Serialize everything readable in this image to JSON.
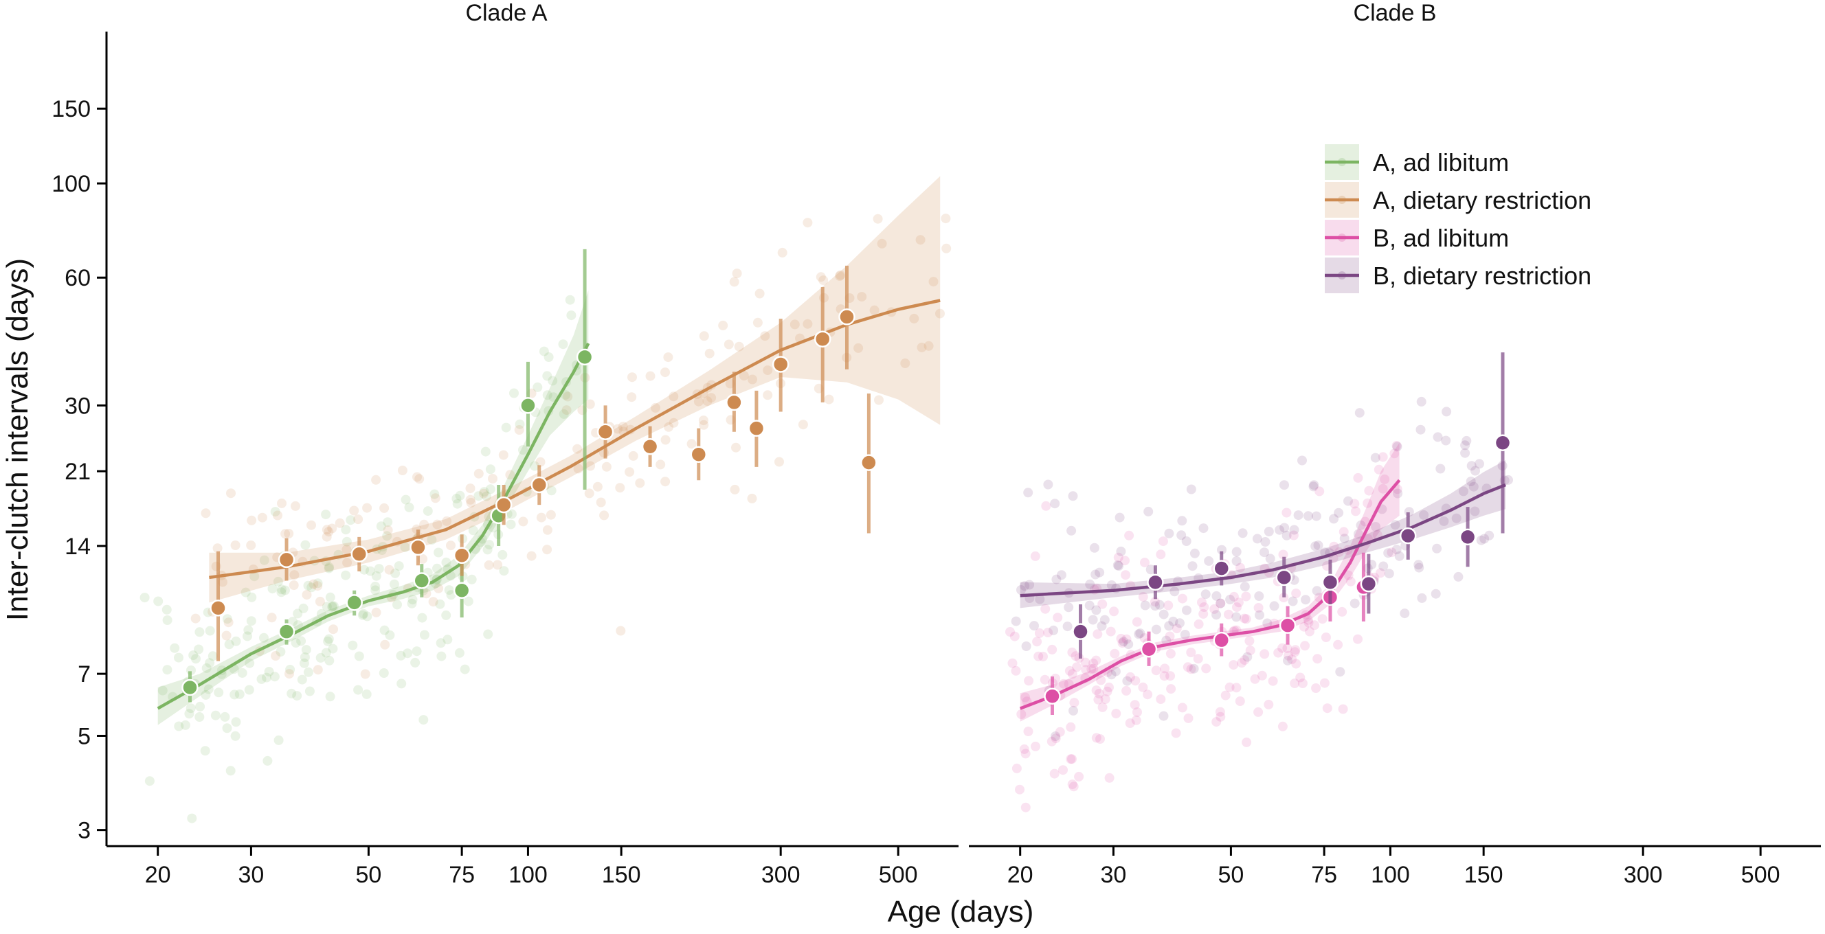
{
  "chart_data": {
    "type": "scatter",
    "xlabel": "Age (days)",
    "ylabel": "Inter-clutch intervals (days)",
    "x_scale": "log",
    "y_scale": "log",
    "xlim": [
      16,
      650
    ],
    "ylim": [
      2.75,
      240
    ],
    "x_ticks": [
      20,
      30,
      50,
      75,
      100,
      150,
      300,
      500
    ],
    "y_ticks": [
      3,
      5,
      7,
      14,
      21,
      30,
      60,
      100,
      150
    ],
    "legend": {
      "placement": "top-right",
      "entries": [
        {
          "label": "A, ad libitum",
          "color": "#7cb562"
        },
        {
          "label": "A, dietary restriction",
          "color": "#cd8a50"
        },
        {
          "label": "B, ad libitum",
          "color": "#dd4fa5"
        },
        {
          "label": "B, dietary restriction",
          "color": "#7b4683"
        }
      ]
    },
    "panels": [
      {
        "title": "Clade A",
        "series": [
          {
            "name": "A, ad libitum",
            "color": "#7cb562",
            "trend": {
              "x": [
                20,
                24,
                30,
                36,
                42,
                50,
                58,
                66,
                74,
                82,
                90,
                100,
                110,
                122,
                130
              ],
              "y": [
                5.8,
                6.6,
                7.8,
                8.7,
                9.6,
                10.4,
                10.9,
                11.5,
                12.6,
                14.8,
                18.0,
                23.0,
                29.0,
                36.0,
                42.0
              ],
              "lower": [
                5.3,
                6.2,
                7.5,
                8.4,
                9.3,
                10.1,
                10.5,
                11.0,
                11.9,
                13.9,
                16.8,
                21.0,
                25.5,
                29.0,
                31.0
              ],
              "upper": [
                6.5,
                7.0,
                8.1,
                9.0,
                9.9,
                10.7,
                11.3,
                12.0,
                13.3,
                15.7,
                19.4,
                25.5,
                33.0,
                44.0,
                56.0
              ]
            },
            "points": [
              {
                "x": 23,
                "y": 6.5,
                "lo": 6.0,
                "hi": 7.1
              },
              {
                "x": 35,
                "y": 8.8,
                "lo": 8.2,
                "hi": 9.4
              },
              {
                "x": 47,
                "y": 10.3,
                "lo": 9.6,
                "hi": 11.0
              },
              {
                "x": 63,
                "y": 11.6,
                "lo": 10.6,
                "hi": 12.7
              },
              {
                "x": 75,
                "y": 11.0,
                "lo": 9.5,
                "hi": 12.8
              },
              {
                "x": 88,
                "y": 16.5,
                "lo": 14.0,
                "hi": 19.5
              },
              {
                "x": 100,
                "y": 30.0,
                "lo": 24.0,
                "hi": 38.0
              },
              {
                "x": 128,
                "y": 39.0,
                "lo": 19.0,
                "hi": 70.0
              }
            ]
          },
          {
            "name": "A, dietary restriction",
            "color": "#cd8a50",
            "trend": {
              "x": [
                25,
                35,
                50,
                70,
                90,
                120,
                160,
                220,
                300,
                400,
                500,
                600
              ],
              "y": [
                11.8,
                12.5,
                13.6,
                15.3,
                17.8,
                21.5,
                26.5,
                33.0,
                40.5,
                46.5,
                50.5,
                53.0
              ],
              "lower": [
                10.3,
                11.6,
                12.8,
                14.5,
                16.8,
                20.3,
                24.8,
                30.0,
                35.0,
                34.0,
                31.0,
                27.0
              ],
              "upper": [
                13.5,
                13.5,
                14.5,
                16.2,
                18.9,
                22.8,
                28.3,
                36.3,
                47.0,
                64.0,
                84.0,
                104.0
              ]
            },
            "points": [
              {
                "x": 26,
                "y": 10.0,
                "lo": 7.5,
                "hi": 13.6
              },
              {
                "x": 35,
                "y": 13.0,
                "lo": 11.6,
                "hi": 14.6
              },
              {
                "x": 48,
                "y": 13.4,
                "lo": 12.2,
                "hi": 14.7
              },
              {
                "x": 62,
                "y": 13.9,
                "lo": 12.6,
                "hi": 15.3
              },
              {
                "x": 75,
                "y": 13.3,
                "lo": 11.9,
                "hi": 14.9
              },
              {
                "x": 90,
                "y": 17.5,
                "lo": 15.7,
                "hi": 19.5
              },
              {
                "x": 105,
                "y": 19.5,
                "lo": 17.5,
                "hi": 21.7
              },
              {
                "x": 140,
                "y": 26.0,
                "lo": 22.5,
                "hi": 30.0
              },
              {
                "x": 170,
                "y": 24.0,
                "lo": 21.5,
                "hi": 26.8
              },
              {
                "x": 210,
                "y": 23.0,
                "lo": 20.0,
                "hi": 26.5
              },
              {
                "x": 245,
                "y": 30.5,
                "lo": 26.0,
                "hi": 36.0
              },
              {
                "x": 270,
                "y": 26.5,
                "lo": 21.5,
                "hi": 32.5
              },
              {
                "x": 300,
                "y": 37.5,
                "lo": 29.0,
                "hi": 48.0
              },
              {
                "x": 360,
                "y": 43.0,
                "lo": 30.5,
                "hi": 57.0
              },
              {
                "x": 400,
                "y": 48.5,
                "lo": 36.5,
                "hi": 64.0
              },
              {
                "x": 440,
                "y": 22.0,
                "lo": 15.0,
                "hi": 32.0
              }
            ]
          }
        ]
      },
      {
        "title": "Clade B",
        "series": [
          {
            "name": "B, ad libitum",
            "color": "#dd4fa5",
            "trend": {
              "x": [
                20,
                23,
                27,
                31,
                36,
                42,
                48,
                55,
                62,
                70,
                77,
                84,
                90,
                96,
                104
              ],
              "y": [
                5.8,
                6.2,
                6.8,
                7.5,
                8.1,
                8.4,
                8.6,
                8.8,
                9.1,
                9.7,
                10.8,
                12.8,
                15.2,
                17.8,
                20.0
              ],
              "lower": [
                5.4,
                5.9,
                6.6,
                7.3,
                7.9,
                8.2,
                8.4,
                8.6,
                8.8,
                9.3,
                10.2,
                11.8,
                13.6,
                15.3,
                16.5
              ],
              "upper": [
                6.3,
                6.6,
                7.1,
                7.7,
                8.3,
                8.6,
                8.8,
                9.0,
                9.4,
                10.1,
                11.4,
                14.0,
                17.2,
                21.0,
                24.5
              ]
            },
            "points": [
              {
                "x": 23,
                "y": 6.2,
                "lo": 5.6,
                "hi": 6.9
              },
              {
                "x": 35,
                "y": 8.0,
                "lo": 7.3,
                "hi": 8.8
              },
              {
                "x": 48,
                "y": 8.4,
                "lo": 7.7,
                "hi": 9.2
              },
              {
                "x": 64,
                "y": 9.1,
                "lo": 8.2,
                "hi": 10.1
              },
              {
                "x": 77,
                "y": 10.6,
                "lo": 9.3,
                "hi": 12.0
              },
              {
                "x": 89,
                "y": 11.2,
                "lo": 9.3,
                "hi": 13.5
              }
            ]
          },
          {
            "name": "B, dietary restriction",
            "color": "#7b4683",
            "trend": {
              "x": [
                20,
                30,
                40,
                50,
                60,
                75,
                90,
                110,
                130,
                150,
                165
              ],
              "y": [
                10.7,
                11.0,
                11.4,
                11.8,
                12.3,
                13.2,
                14.2,
                15.5,
                17.0,
                18.6,
                19.5
              ],
              "lower": [
                10.0,
                10.6,
                11.0,
                11.4,
                11.8,
                12.6,
                13.5,
                14.5,
                15.5,
                16.5,
                17.1
              ],
              "upper": [
                11.5,
                11.4,
                11.8,
                12.2,
                12.8,
                13.8,
                14.9,
                16.6,
                18.6,
                20.9,
                22.3
              ]
            },
            "points": [
              {
                "x": 26,
                "y": 8.8,
                "lo": 7.6,
                "hi": 10.2
              },
              {
                "x": 36,
                "y": 11.5,
                "lo": 10.5,
                "hi": 12.6
              },
              {
                "x": 48,
                "y": 12.4,
                "lo": 11.3,
                "hi": 13.6
              },
              {
                "x": 63,
                "y": 11.8,
                "lo": 10.6,
                "hi": 13.2
              },
              {
                "x": 77,
                "y": 11.5,
                "lo": 10.2,
                "hi": 13.0
              },
              {
                "x": 91,
                "y": 11.4,
                "lo": 9.7,
                "hi": 13.4
              },
              {
                "x": 108,
                "y": 14.8,
                "lo": 13.0,
                "hi": 16.8
              },
              {
                "x": 140,
                "y": 14.7,
                "lo": 12.5,
                "hi": 17.3
              },
              {
                "x": 163,
                "y": 24.5,
                "lo": 15.0,
                "hi": 40.0
              }
            ]
          }
        ]
      }
    ]
  }
}
